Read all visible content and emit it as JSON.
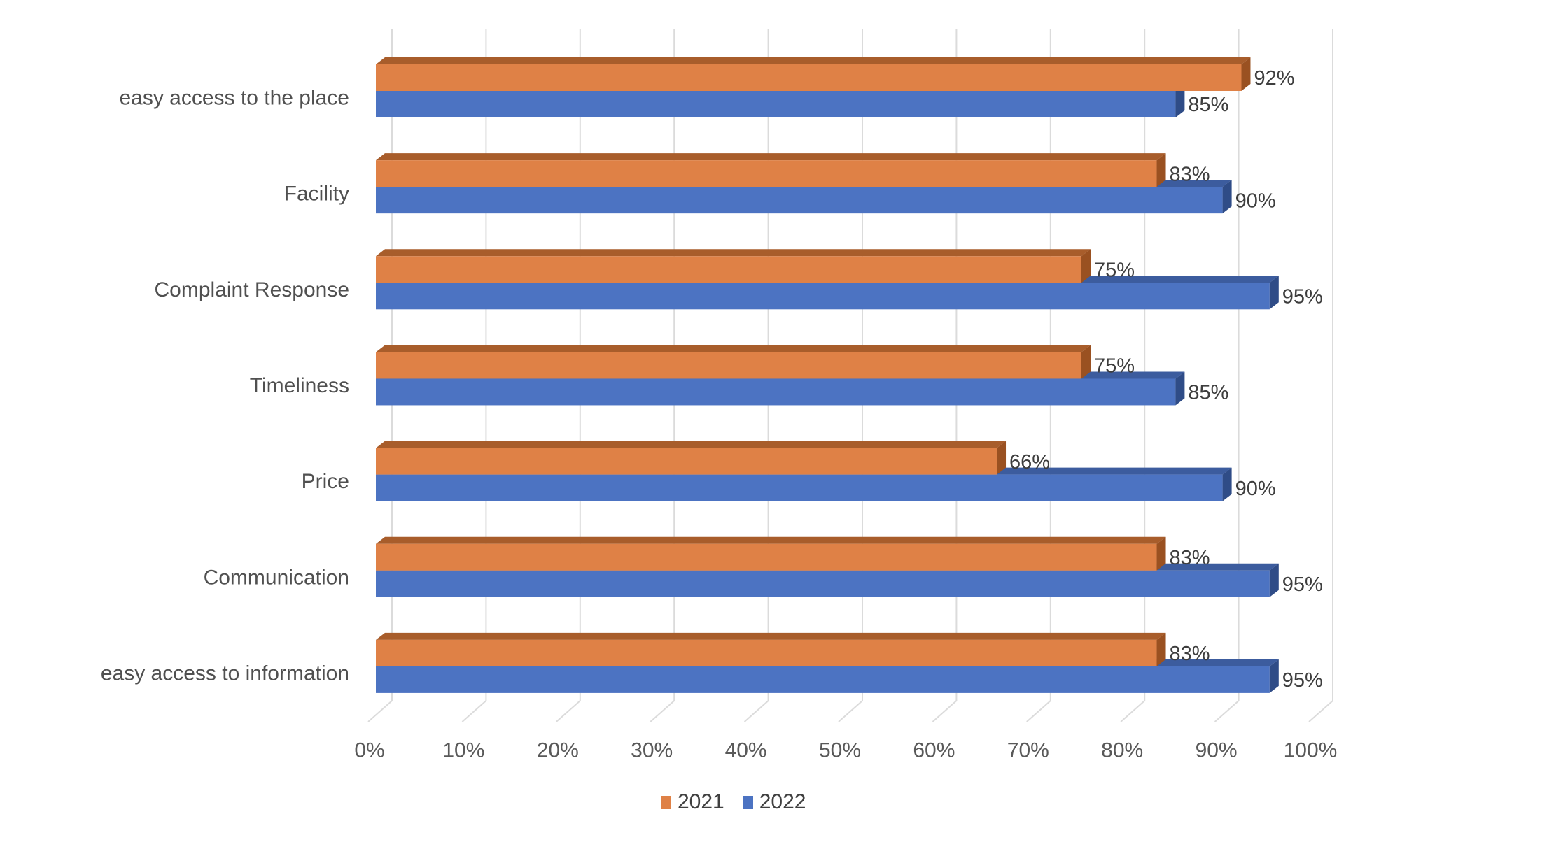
{
  "chart_data": {
    "type": "bar",
    "orientation": "horizontal",
    "style": "3d-clustered",
    "title": "",
    "categories": [
      "easy access to the place",
      "Facility",
      "Complaint Response",
      "Timeliness",
      "Price",
      "Communication",
      "easy access to information"
    ],
    "series": [
      {
        "name": "2021",
        "color": "#DF8146",
        "top_color": "#A85D2B",
        "side_color": "#9A5121",
        "values": [
          92,
          83,
          75,
          75,
          66,
          83,
          83
        ]
      },
      {
        "name": "2022",
        "color": "#4C73C2",
        "top_color": "#3C5C9E",
        "side_color": "#2F4C87",
        "values": [
          85,
          90,
          95,
          85,
          90,
          95,
          95
        ]
      }
    ],
    "data_label_suffix": "%",
    "x_axis": {
      "min": 0,
      "max": 100,
      "tick_step": 10,
      "ticks": [
        "0%",
        "10%",
        "20%",
        "30%",
        "40%",
        "50%",
        "60%",
        "70%",
        "80%",
        "90%",
        "100%"
      ],
      "grid": true
    },
    "legend": {
      "position": "bottom-center"
    },
    "colors": {
      "gridline": "#DBDBDB",
      "background": "#FFFFFF",
      "category_text": "#505050",
      "tick_text": "#595959",
      "data_label_text": "#3E3E3E",
      "legend_text": "#404040"
    }
  }
}
